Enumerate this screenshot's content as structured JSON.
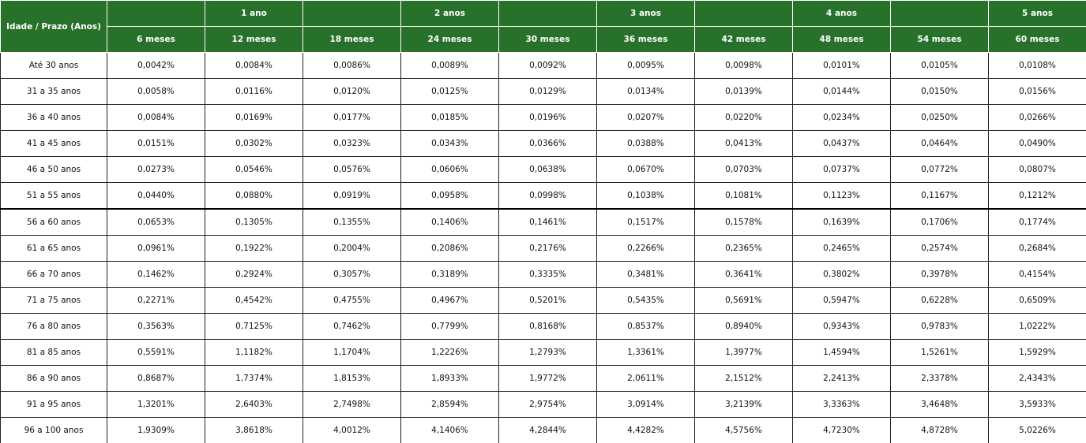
{
  "table": {
    "corner": "Idade / Prazo (Anos)",
    "year_headers": [
      null,
      "1 ano",
      null,
      "2 anos",
      null,
      "3 anos",
      null,
      "4 anos",
      null,
      "5 anos"
    ],
    "month_headers": [
      "6 meses",
      "12 meses",
      "18 meses",
      "24 meses",
      "30 meses",
      "36 meses",
      "42 meses",
      "48 meses",
      "54 meses",
      "60 meses"
    ],
    "rows": [
      {
        "label": "Até 30 anos",
        "cells": [
          "0,0042%",
          "0,0084%",
          "0,0086%",
          "0,0089%",
          "0,0092%",
          "0,0095%",
          "0,0098%",
          "0,0101%",
          "0,0105%",
          "0,0108%"
        ]
      },
      {
        "label": "31 a 35 anos",
        "cells": [
          "0,0058%",
          "0,0116%",
          "0,0120%",
          "0,0125%",
          "0,0129%",
          "0,0134%",
          "0,0139%",
          "0,0144%",
          "0,0150%",
          "0,0156%"
        ]
      },
      {
        "label": "36 a 40 anos",
        "cells": [
          "0,0084%",
          "0,0169%",
          "0,0177%",
          "0,0185%",
          "0,0196%",
          "0,0207%",
          "0,0220%",
          "0,0234%",
          "0,0250%",
          "0,0266%"
        ]
      },
      {
        "label": "41 a 45 anos",
        "cells": [
          "0,0151%",
          "0,0302%",
          "0,0323%",
          "0,0343%",
          "0,0366%",
          "0,0388%",
          "0,0413%",
          "0,0437%",
          "0,0464%",
          "0,0490%"
        ]
      },
      {
        "label": "46 a 50 anos",
        "cells": [
          "0,0273%",
          "0,0546%",
          "0,0576%",
          "0,0606%",
          "0,0638%",
          "0,0670%",
          "0,0703%",
          "0,0737%",
          "0,0772%",
          "0,0807%"
        ]
      },
      {
        "label": "51 a 55 anos",
        "cells": [
          "0,0440%",
          "0,0880%",
          "0,0919%",
          "0,0958%",
          "0,0998%",
          "0,1038%",
          "0,1081%",
          "0,1123%",
          "0,1167%",
          "0,1212%"
        ]
      },
      {
        "label": "56 a 60 anos",
        "cells": [
          "0,0653%",
          "0,1305%",
          "0,1355%",
          "0,1406%",
          "0,1461%",
          "0,1517%",
          "0,1578%",
          "0,1639%",
          "0,1706%",
          "0,1774%"
        ]
      },
      {
        "label": "61 a 65 anos",
        "cells": [
          "0,0961%",
          "0,1922%",
          "0,2004%",
          "0,2086%",
          "0,2176%",
          "0,2266%",
          "0,2365%",
          "0,2465%",
          "0,2574%",
          "0,2684%"
        ]
      },
      {
        "label": "66 a 70 anos",
        "cells": [
          "0,1462%",
          "0,2924%",
          "0,3057%",
          "0,3189%",
          "0,3335%",
          "0,3481%",
          "0,3641%",
          "0,3802%",
          "0,3978%",
          "0,4154%"
        ]
      },
      {
        "label": "71 a 75 anos",
        "cells": [
          "0,2271%",
          "0,4542%",
          "0,4755%",
          "0,4967%",
          "0,5201%",
          "0,5435%",
          "0,5691%",
          "0,5947%",
          "0,6228%",
          "0,6509%"
        ]
      },
      {
        "label": "76 a 80 anos",
        "cells": [
          "0,3563%",
          "0,7125%",
          "0,7462%",
          "0,7799%",
          "0,8168%",
          "0,8537%",
          "0,8940%",
          "0,9343%",
          "0,9783%",
          "1,0222%"
        ]
      },
      {
        "label": "81 a 85 anos",
        "cells": [
          "0,5591%",
          "1,1182%",
          "1,1704%",
          "1,2226%",
          "1,2793%",
          "1,3361%",
          "1,3977%",
          "1,4594%",
          "1,5261%",
          "1,5929%"
        ]
      },
      {
        "label": "86 a 90 anos",
        "cells": [
          "0,8687%",
          "1,7374%",
          "1,8153%",
          "1,8933%",
          "1,9772%",
          "2,0611%",
          "2,1512%",
          "2,2413%",
          "2,3378%",
          "2,4343%"
        ]
      },
      {
        "label": "91 a 95 anos",
        "cells": [
          "1,3201%",
          "2,6403%",
          "2,7498%",
          "2,8594%",
          "2,9754%",
          "3,0914%",
          "3,2139%",
          "3,3363%",
          "3,4648%",
          "3,5933%"
        ]
      },
      {
        "label": "96 a 100 anos",
        "cells": [
          "1,9309%",
          "3,8618%",
          "4,0012%",
          "4,1406%",
          "4,2844%",
          "4,4282%",
          "4,5756%",
          "4,7230%",
          "4,8728%",
          "5,0226%"
        ]
      }
    ]
  }
}
